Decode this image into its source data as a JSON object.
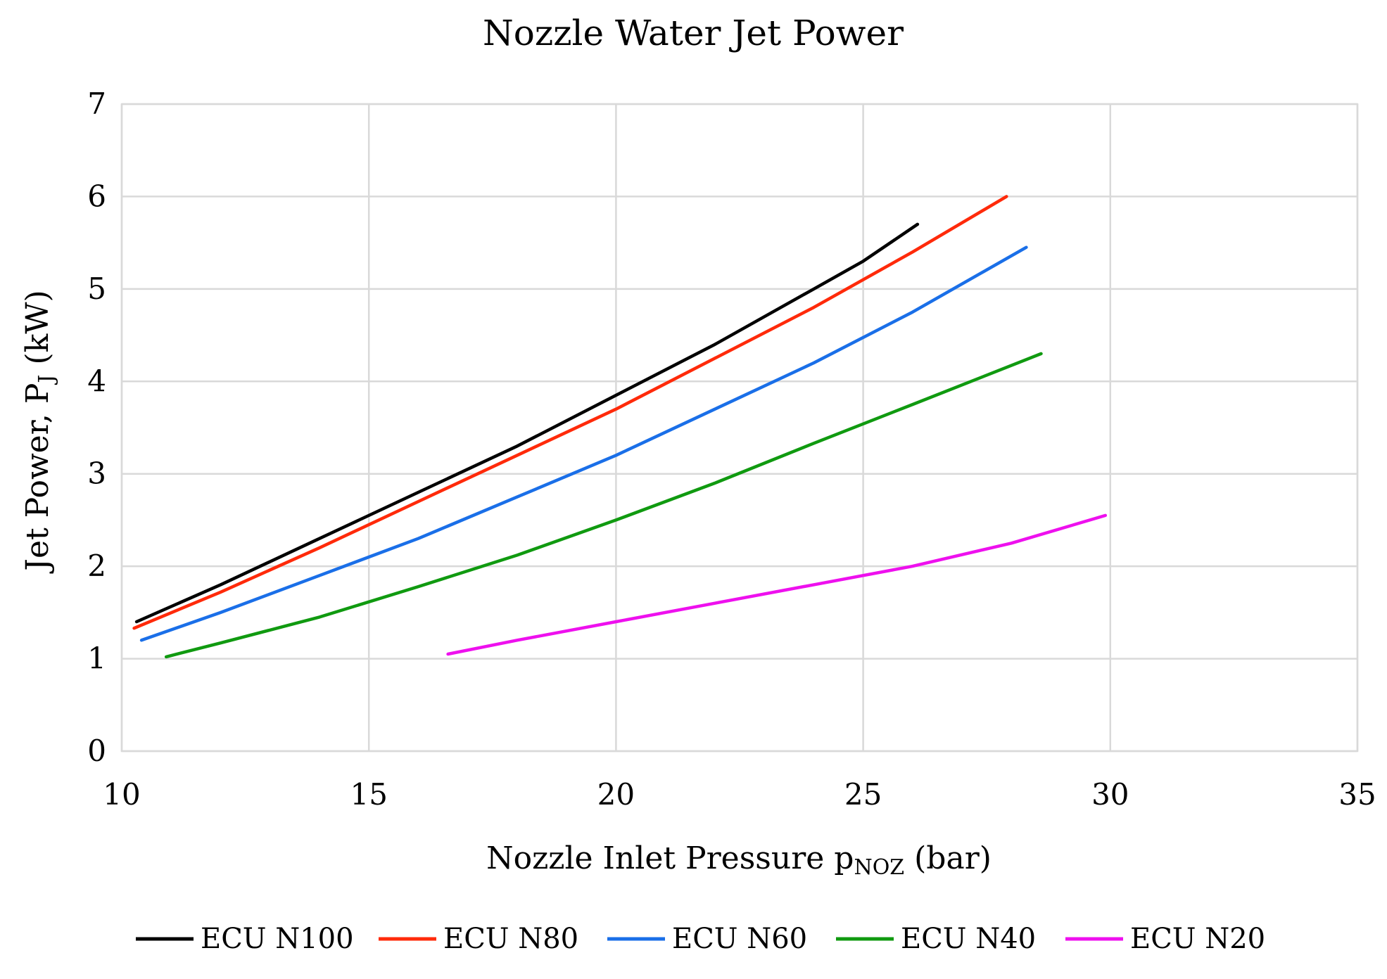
{
  "chart_data": {
    "type": "line",
    "title": "Nozzle Water Jet Power",
    "xlabel": {
      "main": "Nozzle Inlet Pressure p",
      "subscript": "NOZ",
      "suffix": " (bar)"
    },
    "ylabel": {
      "main": "Jet Power, P",
      "subscript": "J",
      "suffix": " (kW)"
    },
    "xlim": [
      10,
      35
    ],
    "ylim": [
      0,
      7
    ],
    "xticks": [
      "10",
      "15",
      "20",
      "25",
      "30",
      "35"
    ],
    "yticks": [
      "0",
      "1",
      "2",
      "3",
      "4",
      "5",
      "6",
      "7"
    ],
    "grid": true,
    "legend_position": "bottom",
    "series": [
      {
        "name": "ECU N100",
        "color": "#000000",
        "points": [
          [
            10.3,
            1.4
          ],
          [
            12,
            1.8
          ],
          [
            14,
            2.3
          ],
          [
            16,
            2.8
          ],
          [
            18,
            3.3
          ],
          [
            20,
            3.85
          ],
          [
            22,
            4.4
          ],
          [
            24,
            5.0
          ],
          [
            25,
            5.3
          ],
          [
            26.1,
            5.7
          ]
        ]
      },
      {
        "name": "ECU N80",
        "color": "#ff2a0a",
        "points": [
          [
            10.25,
            1.33
          ],
          [
            12,
            1.72
          ],
          [
            14,
            2.2
          ],
          [
            16,
            2.7
          ],
          [
            18,
            3.2
          ],
          [
            20,
            3.7
          ],
          [
            22,
            4.25
          ],
          [
            24,
            4.8
          ],
          [
            26,
            5.4
          ],
          [
            27.9,
            6.0
          ]
        ]
      },
      {
        "name": "ECU N60",
        "color": "#1a6fe8",
        "points": [
          [
            10.4,
            1.2
          ],
          [
            12,
            1.5
          ],
          [
            14,
            1.9
          ],
          [
            16,
            2.3
          ],
          [
            18,
            2.75
          ],
          [
            20,
            3.2
          ],
          [
            22,
            3.7
          ],
          [
            24,
            4.2
          ],
          [
            26,
            4.75
          ],
          [
            28.3,
            5.45
          ]
        ]
      },
      {
        "name": "ECU N40",
        "color": "#109a10",
        "points": [
          [
            10.9,
            1.02
          ],
          [
            12,
            1.17
          ],
          [
            14,
            1.45
          ],
          [
            16,
            1.78
          ],
          [
            18,
            2.12
          ],
          [
            20,
            2.5
          ],
          [
            22,
            2.9
          ],
          [
            24,
            3.33
          ],
          [
            26,
            3.75
          ],
          [
            28.6,
            4.3
          ]
        ]
      },
      {
        "name": "ECU N20",
        "color": "#ee10ee",
        "points": [
          [
            16.6,
            1.05
          ],
          [
            18,
            1.2
          ],
          [
            20,
            1.4
          ],
          [
            22,
            1.6
          ],
          [
            24,
            1.8
          ],
          [
            26,
            2.0
          ],
          [
            28,
            2.25
          ],
          [
            29.9,
            2.55
          ]
        ]
      }
    ]
  }
}
